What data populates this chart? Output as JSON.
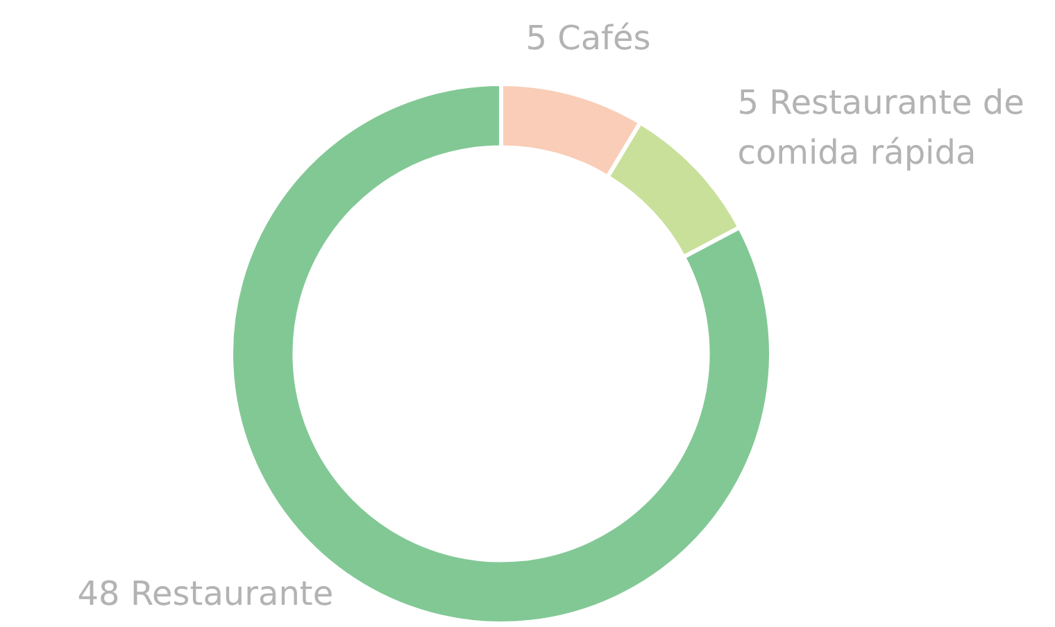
{
  "chart_data": {
    "type": "donut",
    "categories": [
      "5 Cafés",
      "5 Restaurante de comida rápida",
      "48 Restaurante"
    ],
    "values": [
      5,
      5,
      48
    ],
    "colors": [
      "#f9cdb7",
      "#c9e09a",
      "#82c895"
    ],
    "legend": false
  }
}
